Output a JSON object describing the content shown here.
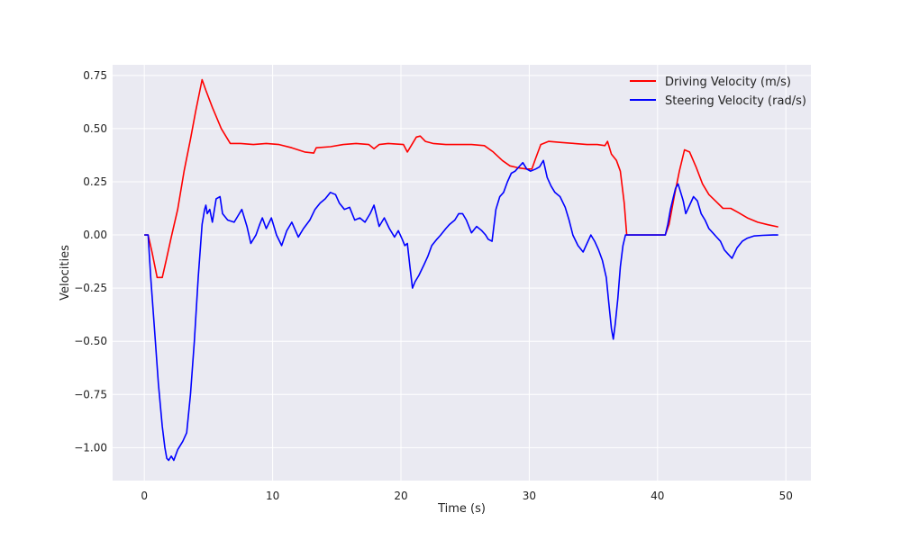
{
  "chart_data": {
    "type": "line",
    "title": "",
    "xlabel": "Time (s)",
    "ylabel": "Velocities",
    "xlim": [
      -2.47,
      51.95
    ],
    "ylim": [
      -1.155,
      0.8
    ],
    "xticks": [
      0,
      10,
      20,
      30,
      40,
      50
    ],
    "xtick_labels": [
      "0",
      "10",
      "20",
      "30",
      "40",
      "50"
    ],
    "yticks": [
      0.75,
      0.5,
      0.25,
      0.0,
      -0.25,
      -0.5,
      -0.75,
      -1.0
    ],
    "ytick_labels": [
      "0.75",
      "0.50",
      "0.25",
      "0.00",
      "−0.25",
      "−0.50",
      "−0.75",
      "−1.00"
    ],
    "grid": true,
    "background": "#eaeaf2",
    "legend_position": "top-right",
    "series": [
      {
        "name": "Driving Velocity (m/s)",
        "color": "#ff0000",
        "points": [
          [
            0,
            0
          ],
          [
            0.3,
            0
          ],
          [
            0.6,
            -0.08
          ],
          [
            1.0,
            -0.2
          ],
          [
            1.4,
            -0.2
          ],
          [
            1.7,
            -0.12
          ],
          [
            2.1,
            -0.01
          ],
          [
            2.6,
            0.12
          ],
          [
            3.1,
            0.3
          ],
          [
            3.6,
            0.45
          ],
          [
            4.0,
            0.58
          ],
          [
            4.5,
            0.73
          ],
          [
            4.8,
            0.68
          ],
          [
            5.3,
            0.6
          ],
          [
            6.0,
            0.5
          ],
          [
            6.7,
            0.43
          ],
          [
            7.5,
            0.43
          ],
          [
            8.5,
            0.425
          ],
          [
            9.5,
            0.43
          ],
          [
            10.5,
            0.425
          ],
          [
            11.5,
            0.41
          ],
          [
            12.5,
            0.39
          ],
          [
            13.2,
            0.385
          ],
          [
            13.4,
            0.41
          ],
          [
            14.5,
            0.415
          ],
          [
            15.5,
            0.425
          ],
          [
            16.5,
            0.43
          ],
          [
            17.5,
            0.425
          ],
          [
            17.9,
            0.405
          ],
          [
            18.3,
            0.425
          ],
          [
            19.0,
            0.43
          ],
          [
            20.2,
            0.425
          ],
          [
            20.5,
            0.39
          ],
          [
            20.8,
            0.42
          ],
          [
            21.2,
            0.46
          ],
          [
            21.5,
            0.465
          ],
          [
            21.9,
            0.44
          ],
          [
            22.5,
            0.43
          ],
          [
            23.5,
            0.425
          ],
          [
            24.5,
            0.425
          ],
          [
            25.5,
            0.425
          ],
          [
            26.5,
            0.42
          ],
          [
            27.2,
            0.39
          ],
          [
            27.9,
            0.35
          ],
          [
            28.5,
            0.325
          ],
          [
            29.2,
            0.315
          ],
          [
            29.8,
            0.31
          ],
          [
            30.2,
            0.31
          ],
          [
            30.5,
            0.36
          ],
          [
            30.9,
            0.425
          ],
          [
            31.5,
            0.44
          ],
          [
            32.5,
            0.435
          ],
          [
            33.5,
            0.43
          ],
          [
            34.5,
            0.425
          ],
          [
            35.3,
            0.425
          ],
          [
            35.9,
            0.42
          ],
          [
            36.1,
            0.44
          ],
          [
            36.4,
            0.38
          ],
          [
            36.8,
            0.35
          ],
          [
            37.1,
            0.3
          ],
          [
            37.4,
            0.15
          ],
          [
            37.6,
            0.0
          ],
          [
            38.5,
            0.0
          ],
          [
            39.5,
            0.0
          ],
          [
            40.6,
            0.0
          ],
          [
            40.9,
            0.05
          ],
          [
            41.3,
            0.18
          ],
          [
            41.7,
            0.3
          ],
          [
            42.1,
            0.4
          ],
          [
            42.5,
            0.39
          ],
          [
            43.0,
            0.32
          ],
          [
            43.5,
            0.24
          ],
          [
            44.0,
            0.19
          ],
          [
            44.6,
            0.155
          ],
          [
            45.1,
            0.125
          ],
          [
            45.7,
            0.125
          ],
          [
            46.3,
            0.105
          ],
          [
            47.0,
            0.08
          ],
          [
            47.8,
            0.06
          ],
          [
            48.6,
            0.048
          ],
          [
            49.4,
            0.038
          ]
        ]
      },
      {
        "name": "Steering Velocity (rad/s)",
        "color": "#0000ff",
        "points": [
          [
            0,
            0
          ],
          [
            0.3,
            0
          ],
          [
            0.5,
            -0.2
          ],
          [
            0.8,
            -0.45
          ],
          [
            1.1,
            -0.7
          ],
          [
            1.4,
            -0.9
          ],
          [
            1.6,
            -1.0
          ],
          [
            1.75,
            -1.05
          ],
          [
            1.9,
            -1.06
          ],
          [
            2.1,
            -1.04
          ],
          [
            2.3,
            -1.06
          ],
          [
            2.6,
            -1.01
          ],
          [
            3.0,
            -0.97
          ],
          [
            3.3,
            -0.93
          ],
          [
            3.6,
            -0.75
          ],
          [
            3.9,
            -0.5
          ],
          [
            4.2,
            -0.2
          ],
          [
            4.5,
            0.05
          ],
          [
            4.7,
            0.12
          ],
          [
            4.8,
            0.14
          ],
          [
            4.9,
            0.1
          ],
          [
            5.1,
            0.12
          ],
          [
            5.3,
            0.06
          ],
          [
            5.6,
            0.17
          ],
          [
            5.9,
            0.18
          ],
          [
            6.1,
            0.1
          ],
          [
            6.5,
            0.07
          ],
          [
            7.0,
            0.06
          ],
          [
            7.4,
            0.1
          ],
          [
            7.6,
            0.12
          ],
          [
            8.0,
            0.04
          ],
          [
            8.3,
            -0.04
          ],
          [
            8.7,
            0.0
          ],
          [
            9.0,
            0.05
          ],
          [
            9.2,
            0.08
          ],
          [
            9.5,
            0.03
          ],
          [
            9.9,
            0.08
          ],
          [
            10.3,
            0.0
          ],
          [
            10.7,
            -0.05
          ],
          [
            11.1,
            0.02
          ],
          [
            11.5,
            0.06
          ],
          [
            12.0,
            -0.01
          ],
          [
            12.4,
            0.03
          ],
          [
            12.9,
            0.07
          ],
          [
            13.3,
            0.12
          ],
          [
            13.7,
            0.15
          ],
          [
            14.1,
            0.17
          ],
          [
            14.5,
            0.2
          ],
          [
            14.9,
            0.19
          ],
          [
            15.2,
            0.15
          ],
          [
            15.6,
            0.12
          ],
          [
            16.0,
            0.13
          ],
          [
            16.4,
            0.07
          ],
          [
            16.8,
            0.08
          ],
          [
            17.2,
            0.06
          ],
          [
            17.6,
            0.1
          ],
          [
            17.9,
            0.14
          ],
          [
            18.3,
            0.04
          ],
          [
            18.7,
            0.08
          ],
          [
            19.1,
            0.03
          ],
          [
            19.5,
            -0.01
          ],
          [
            19.8,
            0.02
          ],
          [
            20.1,
            -0.02
          ],
          [
            20.3,
            -0.05
          ],
          [
            20.5,
            -0.04
          ],
          [
            20.7,
            -0.15
          ],
          [
            20.9,
            -0.25
          ],
          [
            21.1,
            -0.22
          ],
          [
            21.4,
            -0.19
          ],
          [
            21.8,
            -0.14
          ],
          [
            22.1,
            -0.1
          ],
          [
            22.4,
            -0.05
          ],
          [
            22.8,
            -0.02
          ],
          [
            23.1,
            -0.0
          ],
          [
            23.5,
            0.03
          ],
          [
            23.8,
            0.05
          ],
          [
            24.2,
            0.07
          ],
          [
            24.5,
            0.1
          ],
          [
            24.8,
            0.1
          ],
          [
            25.1,
            0.07
          ],
          [
            25.5,
            0.01
          ],
          [
            25.9,
            0.04
          ],
          [
            26.3,
            0.02
          ],
          [
            26.6,
            0.0
          ],
          [
            26.8,
            -0.02
          ],
          [
            27.1,
            -0.03
          ],
          [
            27.4,
            0.12
          ],
          [
            27.7,
            0.18
          ],
          [
            28.0,
            0.2
          ],
          [
            28.3,
            0.25
          ],
          [
            28.6,
            0.29
          ],
          [
            28.9,
            0.3
          ],
          [
            29.2,
            0.32
          ],
          [
            29.5,
            0.34
          ],
          [
            29.8,
            0.31
          ],
          [
            30.1,
            0.3
          ],
          [
            30.5,
            0.31
          ],
          [
            30.8,
            0.32
          ],
          [
            31.1,
            0.35
          ],
          [
            31.4,
            0.27
          ],
          [
            31.7,
            0.23
          ],
          [
            32.0,
            0.2
          ],
          [
            32.4,
            0.18
          ],
          [
            32.8,
            0.13
          ],
          [
            33.1,
            0.07
          ],
          [
            33.4,
            0.0
          ],
          [
            33.8,
            -0.05
          ],
          [
            34.2,
            -0.08
          ],
          [
            34.5,
            -0.04
          ],
          [
            34.8,
            0.0
          ],
          [
            35.1,
            -0.03
          ],
          [
            35.4,
            -0.07
          ],
          [
            35.7,
            -0.12
          ],
          [
            36.0,
            -0.2
          ],
          [
            36.2,
            -0.32
          ],
          [
            36.4,
            -0.44
          ],
          [
            36.55,
            -0.49
          ],
          [
            36.7,
            -0.42
          ],
          [
            36.9,
            -0.3
          ],
          [
            37.1,
            -0.15
          ],
          [
            37.3,
            -0.05
          ],
          [
            37.5,
            0.0
          ],
          [
            38.0,
            0.0
          ],
          [
            39.0,
            0.0
          ],
          [
            40.6,
            0.0
          ],
          [
            40.8,
            0.05
          ],
          [
            41.0,
            0.12
          ],
          [
            41.2,
            0.17
          ],
          [
            41.4,
            0.22
          ],
          [
            41.6,
            0.24
          ],
          [
            41.8,
            0.2
          ],
          [
            42.0,
            0.16
          ],
          [
            42.2,
            0.1
          ],
          [
            42.5,
            0.14
          ],
          [
            42.8,
            0.18
          ],
          [
            43.1,
            0.16
          ],
          [
            43.4,
            0.1
          ],
          [
            43.7,
            0.07
          ],
          [
            44.0,
            0.03
          ],
          [
            44.3,
            0.01
          ],
          [
            44.6,
            -0.01
          ],
          [
            44.9,
            -0.03
          ],
          [
            45.2,
            -0.07
          ],
          [
            45.5,
            -0.09
          ],
          [
            45.8,
            -0.11
          ],
          [
            46.2,
            -0.06
          ],
          [
            46.6,
            -0.03
          ],
          [
            47.0,
            -0.015
          ],
          [
            47.5,
            -0.005
          ],
          [
            48.2,
            -0.002
          ],
          [
            49.0,
            0.0
          ],
          [
            49.4,
            0.0
          ]
        ]
      }
    ]
  }
}
